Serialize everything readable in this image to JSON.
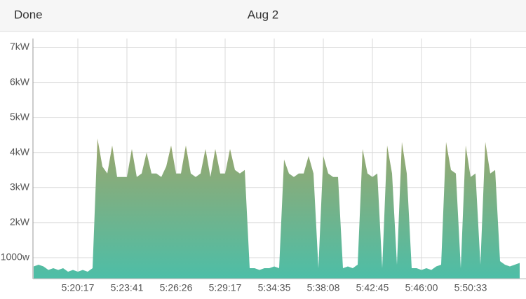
{
  "header": {
    "button": "Done",
    "title": "Aug 2"
  },
  "chart_data": {
    "type": "area",
    "categories": [
      null,
      null,
      null,
      null,
      null,
      null,
      null,
      null,
      null,
      "5:20:17",
      null,
      null,
      null,
      null,
      null,
      null,
      null,
      null,
      null,
      "5:23:41",
      null,
      null,
      null,
      null,
      null,
      null,
      null,
      null,
      null,
      "5:26:26",
      null,
      null,
      null,
      null,
      null,
      null,
      null,
      null,
      null,
      "5:29:17",
      null,
      null,
      null,
      null,
      null,
      null,
      null,
      null,
      null,
      "5:34:35",
      null,
      null,
      null,
      null,
      null,
      null,
      null,
      null,
      null,
      "5:38:08",
      null,
      null,
      null,
      null,
      null,
      null,
      null,
      null,
      null,
      "5:42:45",
      null,
      null,
      null,
      null,
      null,
      null,
      null,
      null,
      null,
      "5:46:00",
      null,
      null,
      null,
      null,
      null,
      null,
      null,
      null,
      null,
      "5:50:33",
      null,
      null,
      null,
      null,
      null,
      null,
      null,
      null,
      null,
      null
    ],
    "values": [
      0.75,
      0.8,
      0.75,
      0.65,
      0.7,
      0.65,
      0.7,
      0.6,
      0.65,
      0.6,
      0.65,
      0.6,
      0.7,
      4.4,
      3.6,
      3.4,
      4.2,
      3.3,
      3.3,
      3.3,
      4.1,
      3.3,
      3.4,
      4.0,
      3.4,
      3.4,
      3.3,
      3.6,
      4.2,
      3.4,
      3.4,
      4.2,
      3.4,
      3.3,
      3.4,
      4.1,
      3.3,
      4.1,
      3.4,
      3.4,
      4.1,
      3.5,
      3.4,
      3.5,
      0.7,
      0.7,
      0.65,
      0.7,
      0.7,
      0.75,
      0.7,
      3.8,
      3.4,
      3.3,
      3.4,
      3.4,
      3.9,
      3.4,
      0.7,
      3.9,
      3.4,
      3.3,
      3.3,
      0.7,
      0.75,
      0.7,
      0.8,
      4.1,
      3.4,
      3.3,
      3.4,
      0.7,
      4.2,
      3.4,
      0.8,
      4.3,
      3.4,
      0.7,
      0.7,
      0.65,
      0.7,
      0.65,
      0.75,
      0.8,
      4.3,
      3.5,
      3.4,
      0.7,
      4.2,
      3.3,
      3.4,
      0.8,
      4.3,
      3.4,
      3.5,
      0.9,
      0.8,
      0.75,
      0.8,
      0.85
    ],
    "color": [
      "#9ba66c",
      "#4dbea7"
    ],
    "ylim": [
      0.4,
      7.25
    ],
    "yticks": [
      {
        "value": 1,
        "label": "1000w"
      },
      {
        "value": 2,
        "label": "2kW"
      },
      {
        "value": 3,
        "label": "3kW"
      },
      {
        "value": 4,
        "label": "4kW"
      },
      {
        "value": 5,
        "label": "5kW"
      },
      {
        "value": 6,
        "label": "6kW"
      },
      {
        "value": 7,
        "label": "7kW"
      }
    ],
    "grid": true
  }
}
